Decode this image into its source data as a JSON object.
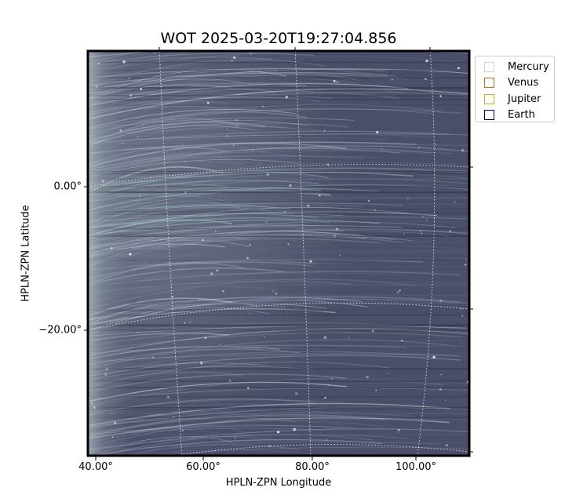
{
  "title": "WOT 2025-03-20T19:27:04.856",
  "axes": {
    "xlabel": "HPLN-ZPN Longitude",
    "ylabel": "HPLN-ZPN Latitude",
    "x_ticks": [
      "40.00°",
      "60.00°",
      "80.00°",
      "100.00°"
    ],
    "y_ticks": [
      "0.00°",
      "−20.00°"
    ]
  },
  "image": {
    "colormap": "bone",
    "grid": true,
    "grid_style": "dotted-white"
  },
  "legend": {
    "placement": "upper-right-outside",
    "items": [
      {
        "label": "Mercury",
        "color": "#d3d3d3"
      },
      {
        "label": "Venus",
        "color": "#d2691e"
      },
      {
        "label": "Jupiter",
        "color": "#daa520"
      },
      {
        "label": "Earth",
        "color": "#000080"
      }
    ]
  }
}
